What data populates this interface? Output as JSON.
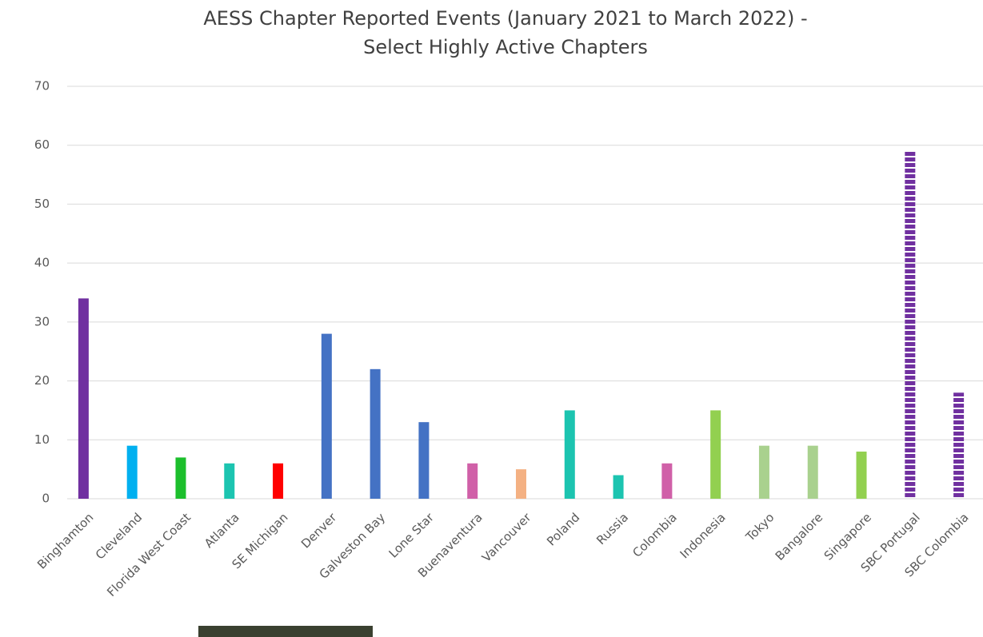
{
  "chart_data": {
    "type": "bar",
    "title": [
      "AESS Chapter Reported Events (January 2021 to March 2022) -",
      "Select Highly Active Chapters"
    ],
    "categories": [
      "Binghamton",
      "Cleveland",
      "Florida West Coast",
      "Atlanta",
      "SE Michigan",
      "Denver",
      "Galveston Bay",
      "Lone Star",
      "Buenaventura",
      "Vancouver",
      "Poland",
      "Russia",
      "Colombia",
      "Indonesia",
      "Tokyo",
      "Bangalore",
      "Singapore",
      "SBC Portugal",
      "SBC Colombia"
    ],
    "values": [
      34,
      9,
      7,
      6,
      6,
      28,
      22,
      13,
      6,
      5,
      15,
      4,
      6,
      15,
      9,
      9,
      8,
      59,
      18
    ],
    "colors": [
      "#7030a0",
      "#00b0f0",
      "#1cbf2c",
      "#1cc4b0",
      "#ff0000",
      "#4472c4",
      "#4472c4",
      "#4472c4",
      "#d060a8",
      "#f4b183",
      "#1cc4b0",
      "#1cc4b0",
      "#d060a8",
      "#92d050",
      "#a9d18e",
      "#a9d18e",
      "#92d050",
      "#7030a0",
      "#7030a0"
    ],
    "bar_styles": [
      "solid",
      "solid",
      "solid",
      "solid",
      "solid",
      "solid",
      "solid",
      "solid",
      "solid",
      "solid",
      "solid",
      "solid",
      "solid",
      "solid",
      "solid",
      "solid",
      "solid",
      "striped",
      "striped"
    ],
    "ylim": [
      0,
      70
    ],
    "yticks": [
      0,
      10,
      20,
      30,
      40,
      50,
      60,
      70
    ],
    "grid": true
  }
}
